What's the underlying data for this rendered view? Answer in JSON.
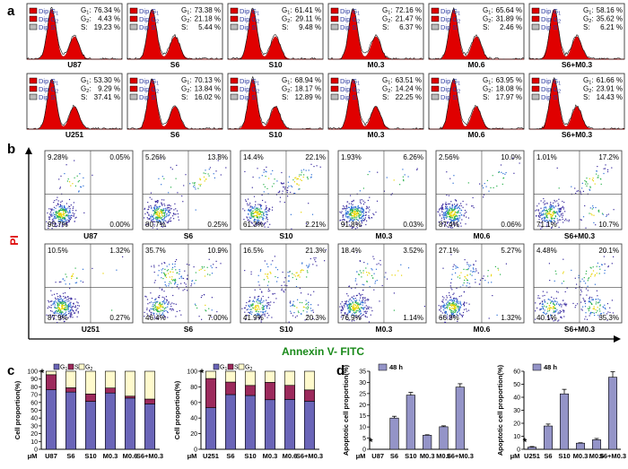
{
  "panel_letters": {
    "a": "a",
    "b": "b",
    "c": "c",
    "d": "d"
  },
  "legend": {
    "g1": "Dip G",
    "g1_sub": "1",
    "g2": "Dip G",
    "g2_sub": "2",
    "s": "Dip S"
  },
  "row_a1": [
    {
      "label": "U87",
      "g1": "76.34 %",
      "g2": "4.43 %",
      "s": "19.23 %"
    },
    {
      "label": "S6",
      "g1": "73.38 %",
      "g2": "21.18 %",
      "s": "5.44 %"
    },
    {
      "label": "S10",
      "g1": "61.41 %",
      "g2": "29.11 %",
      "s": "9.48 %"
    },
    {
      "label": "M0.3",
      "g1": "72.16 %",
      "g2": "21.47 %",
      "s": "6.37 %"
    },
    {
      "label": "M0.6",
      "g1": "65.64 %",
      "g2": "31.89 %",
      "s": "2.46 %"
    },
    {
      "label": "S6+M0.3",
      "g1": "58.16 %",
      "g2": "35.62 %",
      "s": "6.21 %"
    }
  ],
  "row_a2": [
    {
      "label": "U251",
      "g1": "53.30 %",
      "g2": "9.29 %",
      "s": "37.41 %"
    },
    {
      "label": "S6",
      "g1": "70.13 %",
      "g2": "13.84 %",
      "s": "16.02 %"
    },
    {
      "label": "S10",
      "g1": "68.94 %",
      "g2": "18.17 %",
      "s": "12.89 %"
    },
    {
      "label": "M0.3",
      "g1": "63.51 %",
      "g2": "14.24 %",
      "s": "22.25 %"
    },
    {
      "label": "M0.6",
      "g1": "63.95 %",
      "g2": "18.08 %",
      "s": "17.97 %"
    },
    {
      "label": "S6+M0.3",
      "g1": "61.66 %",
      "g2": "23.91 %",
      "s": "14.43 %"
    }
  ],
  "axis_b": {
    "y": "PI",
    "x": "Annexin V- FITC"
  },
  "row_b1": [
    {
      "label": "U87",
      "tl": "9.28%",
      "tr": "0.05%",
      "bl": "90.7%",
      "br": "0.00%"
    },
    {
      "label": "S6",
      "tl": "5.26%",
      "tr": "13.8%",
      "bl": "80.7%",
      "br": "0.25%"
    },
    {
      "label": "S10",
      "tl": "14.4%",
      "tr": "22.1%",
      "bl": "61.3%",
      "br": "2.21%"
    },
    {
      "label": "M0.3",
      "tl": "1.93%",
      "tr": "6.26%",
      "bl": "91.8%",
      "br": "0.03%"
    },
    {
      "label": "M0.6",
      "tl": "2.56%",
      "tr": "10.0%",
      "bl": "87.4%",
      "br": "0.06%"
    },
    {
      "label": "S6+M0.3",
      "tl": "1.01%",
      "tr": "17.2%",
      "bl": "71.1%",
      "br": "10.7%"
    }
  ],
  "row_b2": [
    {
      "label": "U251",
      "tl": "10.5%",
      "tr": "1.32%",
      "bl": "87.9%",
      "br": "0.27%"
    },
    {
      "label": "S6",
      "tl": "35.7%",
      "tr": "10.9%",
      "bl": "46.4%",
      "br": "7.00%"
    },
    {
      "label": "S10",
      "tl": "16.5%",
      "tr": "21.3%",
      "bl": "41.9%",
      "br": "20.3%"
    },
    {
      "label": "M0.3",
      "tl": "18.4%",
      "tr": "3.52%",
      "bl": "76.9%",
      "br": "1.14%"
    },
    {
      "label": "M0.6",
      "tl": "27.1%",
      "tr": "5.27%",
      "bl": "66.3%",
      "br": "1.32%"
    },
    {
      "label": "S6+M0.3",
      "tl": "4.48%",
      "tr": "20.1%",
      "bl": "40.1%",
      "br": "35.3%"
    }
  ],
  "colors": {
    "g1": "#6a65b8",
    "s": "#9c2a5c",
    "g2": "#fffacd",
    "bar_d": "#9494c8",
    "red": "#dd0000",
    "green": "#1a8a1a"
  },
  "chart_data": [
    {
      "type": "bar",
      "id": "c1",
      "ylabel": "Cell proportion(%)",
      "xunit": "μM",
      "ylim": [
        0,
        100
      ],
      "yticks": [
        "0",
        "10",
        "20",
        "30",
        "40",
        "50",
        "60",
        "70",
        "80",
        "90",
        "100"
      ],
      "categories": [
        "U87",
        "S6",
        "S10",
        "M0.3",
        "M0.6",
        "S6+M0.3"
      ],
      "legend": [
        "G",
        "1",
        "S",
        "G",
        "2"
      ],
      "annotation": "*",
      "series": [
        {
          "name": "G1",
          "values": [
            76.34,
            73.38,
            61.41,
            72.16,
            65.64,
            58.16
          ]
        },
        {
          "name": "S",
          "values": [
            19.23,
            5.44,
            9.48,
            6.37,
            2.46,
            6.21
          ]
        },
        {
          "name": "G2",
          "values": [
            4.43,
            21.18,
            29.11,
            21.47,
            31.89,
            35.62
          ]
        }
      ]
    },
    {
      "type": "bar",
      "id": "c2",
      "ylabel": "Cell proportion(%)",
      "xunit": "μM",
      "ylim": [
        0,
        100
      ],
      "yticks": [
        "0",
        "20",
        "40",
        "60",
        "80",
        "100"
      ],
      "categories": [
        "U251",
        "S6",
        "S10",
        "M0.3",
        "M0.6",
        "S6+M0.3"
      ],
      "legend": [
        "G",
        "1",
        "S",
        "G",
        "2"
      ],
      "annotation": "*",
      "series": [
        {
          "name": "G1",
          "values": [
            53.3,
            70.13,
            68.94,
            63.51,
            63.95,
            61.66
          ]
        },
        {
          "name": "S",
          "values": [
            37.41,
            16.02,
            12.89,
            22.25,
            17.97,
            14.43
          ]
        },
        {
          "name": "G2",
          "values": [
            9.29,
            13.84,
            18.17,
            14.24,
            18.08,
            23.91
          ]
        }
      ]
    },
    {
      "type": "bar",
      "id": "d1",
      "ylabel": "Apoptotic cell proportion(%)",
      "xunit": "μM",
      "ylim": [
        0,
        35
      ],
      "yticks": [
        "0",
        "5",
        "10",
        "15",
        "20",
        "25",
        "30",
        "35"
      ],
      "categories": [
        "U87",
        "S6",
        "S10",
        "M0.3",
        "M0.6",
        "S6+M0.3"
      ],
      "legend": [
        "48 h"
      ],
      "annotation": "*",
      "series": [
        {
          "name": "48 h",
          "values": [
            0.05,
            14,
            24.3,
            6.3,
            10.1,
            27.9
          ],
          "errors": [
            0,
            0.8,
            1.2,
            0.2,
            0.4,
            1.5
          ]
        }
      ]
    },
    {
      "type": "bar",
      "id": "d2",
      "ylabel": "Apoptotic cell proportion(%)",
      "xunit": "μM",
      "ylim": [
        0,
        60
      ],
      "yticks": [
        "0",
        "10",
        "20",
        "30",
        "40",
        "50",
        "60"
      ],
      "categories": [
        "U251",
        "S6",
        "S10",
        "M0.3",
        "M0.6",
        "S6+M0.3"
      ],
      "legend": [
        "48 h"
      ],
      "annotation": "*",
      "series": [
        {
          "name": "48 h",
          "values": [
            1.6,
            17.9,
            42.6,
            4.7,
            7.3,
            55.4
          ],
          "errors": [
            0.5,
            1.5,
            3.5,
            0.3,
            1,
            4.2
          ]
        }
      ]
    }
  ]
}
